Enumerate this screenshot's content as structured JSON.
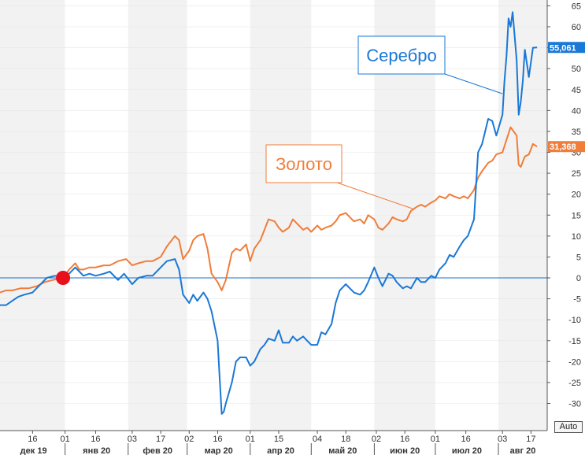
{
  "chart_data": {
    "type": "line",
    "y_ticks": [
      65,
      60,
      55,
      50,
      45,
      40,
      35,
      30,
      25,
      20,
      15,
      10,
      5,
      0,
      -5,
      -10,
      -15,
      -20,
      -25,
      -30
    ],
    "y_tick_labels": [
      "65",
      "60",
      "55",
      "50",
      "45",
      "40",
      "35",
      "30",
      "25",
      "20",
      "15",
      "10",
      "5",
      "0",
      "-5",
      "-10",
      "-15",
      "-20",
      "-25",
      "-30"
    ],
    "ylim": [
      -34,
      66
    ],
    "x_day_ticks": [
      {
        "date": "2019-12-16",
        "label": "16"
      },
      {
        "date": "2020-01-01",
        "label": "01"
      },
      {
        "date": "2020-01-16",
        "label": "16"
      },
      {
        "date": "2020-02-03",
        "label": "03"
      },
      {
        "date": "2020-02-17",
        "label": "17"
      },
      {
        "date": "2020-03-02",
        "label": "02"
      },
      {
        "date": "2020-03-16",
        "label": "16"
      },
      {
        "date": "2020-04-01",
        "label": "01"
      },
      {
        "date": "2020-04-15",
        "label": "15"
      },
      {
        "date": "2020-05-04",
        "label": "04"
      },
      {
        "date": "2020-05-18",
        "label": "18"
      },
      {
        "date": "2020-06-02",
        "label": "02"
      },
      {
        "date": "2020-06-16",
        "label": "16"
      },
      {
        "date": "2020-07-01",
        "label": "01"
      },
      {
        "date": "2020-07-16",
        "label": "16"
      },
      {
        "date": "2020-08-03",
        "label": "03"
      },
      {
        "date": "2020-08-17",
        "label": "17"
      }
    ],
    "x_month_ticks": [
      {
        "date": "2019-12-01",
        "label": "дек 19"
      },
      {
        "date": "2020-01-01",
        "label": "янв 20"
      },
      {
        "date": "2020-02-01",
        "label": "фев 20"
      },
      {
        "date": "2020-03-01",
        "label": "мар 20"
      },
      {
        "date": "2020-04-01",
        "label": "апр 20"
      },
      {
        "date": "2020-05-01",
        "label": "май 20"
      },
      {
        "date": "2020-06-01",
        "label": "июн 20"
      },
      {
        "date": "2020-07-01",
        "label": "июл 20"
      },
      {
        "date": "2020-08-01",
        "label": "авг 20"
      }
    ],
    "xlim": [
      "2019-11-30",
      "2020-08-25"
    ],
    "reference_line": {
      "y": 0,
      "color": "#1a6fcf"
    },
    "base_marker": {
      "date": "2019-12-31",
      "y": 0,
      "color": "#e8101a"
    },
    "grid": "alternating vertical month bands",
    "series": [
      {
        "name": "Серебро",
        "color": "#1a78d6",
        "last_value_label": "55,061",
        "points": [
          [
            "2019-11-30",
            -6.5
          ],
          [
            "2019-12-03",
            -6.5
          ],
          [
            "2019-12-06",
            -5.5
          ],
          [
            "2019-12-09",
            -4.5
          ],
          [
            "2019-12-12",
            -4.0
          ],
          [
            "2019-12-16",
            -3.5
          ],
          [
            "2019-12-19",
            -2.0
          ],
          [
            "2019-12-23",
            0.0
          ],
          [
            "2019-12-27",
            0.5
          ],
          [
            "2019-12-31",
            0.0
          ],
          [
            "2020-01-03",
            1.0
          ],
          [
            "2020-01-06",
            2.5
          ],
          [
            "2020-01-08",
            1.5
          ],
          [
            "2020-01-10",
            0.5
          ],
          [
            "2020-01-13",
            1.0
          ],
          [
            "2020-01-16",
            0.5
          ],
          [
            "2020-01-20",
            1.0
          ],
          [
            "2020-01-23",
            1.5
          ],
          [
            "2020-01-27",
            -0.5
          ],
          [
            "2020-01-30",
            1.0
          ],
          [
            "2020-02-03",
            -1.5
          ],
          [
            "2020-02-06",
            0.0
          ],
          [
            "2020-02-10",
            0.5
          ],
          [
            "2020-02-13",
            0.5
          ],
          [
            "2020-02-17",
            2.5
          ],
          [
            "2020-02-20",
            4.0
          ],
          [
            "2020-02-24",
            4.5
          ],
          [
            "2020-02-26",
            2.0
          ],
          [
            "2020-02-28",
            -4.0
          ],
          [
            "2020-03-02",
            -6.0
          ],
          [
            "2020-03-04",
            -4.0
          ],
          [
            "2020-03-06",
            -5.5
          ],
          [
            "2020-03-09",
            -3.5
          ],
          [
            "2020-03-11",
            -5.0
          ],
          [
            "2020-03-13",
            -8.0
          ],
          [
            "2020-03-16",
            -15.0
          ],
          [
            "2020-03-17",
            -24.0
          ],
          [
            "2020-03-18",
            -32.5
          ],
          [
            "2020-03-19",
            -32.0
          ],
          [
            "2020-03-20",
            -30.0
          ],
          [
            "2020-03-23",
            -25.0
          ],
          [
            "2020-03-25",
            -20.0
          ],
          [
            "2020-03-27",
            -19.0
          ],
          [
            "2020-03-30",
            -19.0
          ],
          [
            "2020-04-01",
            -21.0
          ],
          [
            "2020-04-03",
            -20.0
          ],
          [
            "2020-04-06",
            -17.0
          ],
          [
            "2020-04-08",
            -16.0
          ],
          [
            "2020-04-10",
            -14.5
          ],
          [
            "2020-04-13",
            -15.0
          ],
          [
            "2020-04-15",
            -12.5
          ],
          [
            "2020-04-17",
            -15.5
          ],
          [
            "2020-04-20",
            -15.5
          ],
          [
            "2020-04-22",
            -14.0
          ],
          [
            "2020-04-24",
            -15.0
          ],
          [
            "2020-04-27",
            -14.0
          ],
          [
            "2020-04-29",
            -15.0
          ],
          [
            "2020-05-01",
            -16.0
          ],
          [
            "2020-05-04",
            -16.0
          ],
          [
            "2020-05-06",
            -13.0
          ],
          [
            "2020-05-08",
            -13.5
          ],
          [
            "2020-05-11",
            -11.0
          ],
          [
            "2020-05-13",
            -6.0
          ],
          [
            "2020-05-15",
            -3.0
          ],
          [
            "2020-05-18",
            -1.5
          ],
          [
            "2020-05-20",
            -2.5
          ],
          [
            "2020-05-22",
            -3.5
          ],
          [
            "2020-05-25",
            -4.0
          ],
          [
            "2020-05-27",
            -3.0
          ],
          [
            "2020-05-29",
            -1.0
          ],
          [
            "2020-06-01",
            2.5
          ],
          [
            "2020-06-03",
            0.0
          ],
          [
            "2020-06-05",
            -2.0
          ],
          [
            "2020-06-08",
            1.0
          ],
          [
            "2020-06-10",
            0.5
          ],
          [
            "2020-06-12",
            -1.0
          ],
          [
            "2020-06-15",
            -2.5
          ],
          [
            "2020-06-17",
            -2.0
          ],
          [
            "2020-06-19",
            -2.5
          ],
          [
            "2020-06-22",
            0.0
          ],
          [
            "2020-06-24",
            -1.0
          ],
          [
            "2020-06-26",
            -1.0
          ],
          [
            "2020-06-29",
            0.5
          ],
          [
            "2020-07-01",
            0.0
          ],
          [
            "2020-07-03",
            2.0
          ],
          [
            "2020-07-06",
            3.5
          ],
          [
            "2020-07-08",
            5.5
          ],
          [
            "2020-07-10",
            5.0
          ],
          [
            "2020-07-13",
            7.5
          ],
          [
            "2020-07-15",
            9.0
          ],
          [
            "2020-07-17",
            10.0
          ],
          [
            "2020-07-20",
            14.0
          ],
          [
            "2020-07-21",
            22.0
          ],
          [
            "2020-07-22",
            30.0
          ],
          [
            "2020-07-24",
            32.0
          ],
          [
            "2020-07-27",
            38.0
          ],
          [
            "2020-07-29",
            37.5
          ],
          [
            "2020-07-31",
            34.0
          ],
          [
            "2020-08-03",
            39.0
          ],
          [
            "2020-08-04",
            47.0
          ],
          [
            "2020-08-05",
            53.0
          ],
          [
            "2020-08-06",
            62.0
          ],
          [
            "2020-08-07",
            60.0
          ],
          [
            "2020-08-08",
            63.5
          ],
          [
            "2020-08-10",
            52.0
          ],
          [
            "2020-08-11",
            39.0
          ],
          [
            "2020-08-12",
            42.0
          ],
          [
            "2020-08-13",
            47.0
          ],
          [
            "2020-08-14",
            54.5
          ],
          [
            "2020-08-16",
            48.0
          ],
          [
            "2020-08-18",
            55.0
          ],
          [
            "2020-08-20",
            55.061
          ]
        ]
      },
      {
        "name": "Золото",
        "color": "#f07d3a",
        "last_value_label": "31,368",
        "points": [
          [
            "2019-11-30",
            -3.5
          ],
          [
            "2019-12-03",
            -3.0
          ],
          [
            "2019-12-06",
            -3.0
          ],
          [
            "2019-12-10",
            -2.5
          ],
          [
            "2019-12-14",
            -2.5
          ],
          [
            "2019-12-18",
            -2.0
          ],
          [
            "2019-12-22",
            -1.0
          ],
          [
            "2019-12-26",
            -0.5
          ],
          [
            "2019-12-31",
            0.0
          ],
          [
            "2020-01-03",
            2.0
          ],
          [
            "2020-01-06",
            3.5
          ],
          [
            "2020-01-08",
            2.0
          ],
          [
            "2020-01-10",
            2.0
          ],
          [
            "2020-01-13",
            2.5
          ],
          [
            "2020-01-16",
            2.5
          ],
          [
            "2020-01-20",
            3.0
          ],
          [
            "2020-01-23",
            3.0
          ],
          [
            "2020-01-27",
            4.0
          ],
          [
            "2020-01-31",
            4.5
          ],
          [
            "2020-02-03",
            3.0
          ],
          [
            "2020-02-06",
            3.5
          ],
          [
            "2020-02-10",
            4.0
          ],
          [
            "2020-02-13",
            4.0
          ],
          [
            "2020-02-17",
            5.0
          ],
          [
            "2020-02-20",
            7.5
          ],
          [
            "2020-02-24",
            10.0
          ],
          [
            "2020-02-26",
            9.0
          ],
          [
            "2020-02-28",
            4.5
          ],
          [
            "2020-03-02",
            6.5
          ],
          [
            "2020-03-04",
            9.0
          ],
          [
            "2020-03-06",
            10.0
          ],
          [
            "2020-03-09",
            10.5
          ],
          [
            "2020-03-11",
            7.0
          ],
          [
            "2020-03-13",
            1.0
          ],
          [
            "2020-03-16",
            -1.0
          ],
          [
            "2020-03-18",
            -3.0
          ],
          [
            "2020-03-20",
            -0.5
          ],
          [
            "2020-03-23",
            6.0
          ],
          [
            "2020-03-25",
            7.0
          ],
          [
            "2020-03-27",
            6.5
          ],
          [
            "2020-03-30",
            8.0
          ],
          [
            "2020-04-01",
            4.0
          ],
          [
            "2020-04-03",
            7.0
          ],
          [
            "2020-04-06",
            9.0
          ],
          [
            "2020-04-08",
            11.5
          ],
          [
            "2020-04-10",
            14.0
          ],
          [
            "2020-04-13",
            13.5
          ],
          [
            "2020-04-15",
            12.0
          ],
          [
            "2020-04-17",
            11.0
          ],
          [
            "2020-04-20",
            12.0
          ],
          [
            "2020-04-22",
            14.0
          ],
          [
            "2020-04-24",
            13.0
          ],
          [
            "2020-04-27",
            11.5
          ],
          [
            "2020-04-29",
            12.0
          ],
          [
            "2020-05-01",
            11.0
          ],
          [
            "2020-05-04",
            12.5
          ],
          [
            "2020-05-06",
            11.5
          ],
          [
            "2020-05-08",
            12.0
          ],
          [
            "2020-05-11",
            12.5
          ],
          [
            "2020-05-13",
            13.5
          ],
          [
            "2020-05-15",
            15.0
          ],
          [
            "2020-05-18",
            15.5
          ],
          [
            "2020-05-20",
            14.5
          ],
          [
            "2020-05-22",
            13.5
          ],
          [
            "2020-05-25",
            14.0
          ],
          [
            "2020-05-27",
            13.0
          ],
          [
            "2020-05-29",
            15.0
          ],
          [
            "2020-06-01",
            14.0
          ],
          [
            "2020-06-03",
            12.0
          ],
          [
            "2020-06-05",
            11.5
          ],
          [
            "2020-06-08",
            13.0
          ],
          [
            "2020-06-10",
            14.5
          ],
          [
            "2020-06-12",
            14.0
          ],
          [
            "2020-06-15",
            13.5
          ],
          [
            "2020-06-17",
            14.0
          ],
          [
            "2020-06-19",
            16.0
          ],
          [
            "2020-06-22",
            17.0
          ],
          [
            "2020-06-24",
            17.5
          ],
          [
            "2020-06-26",
            17.0
          ],
          [
            "2020-06-29",
            18.0
          ],
          [
            "2020-07-01",
            18.5
          ],
          [
            "2020-07-03",
            19.5
          ],
          [
            "2020-07-06",
            19.0
          ],
          [
            "2020-07-08",
            20.0
          ],
          [
            "2020-07-10",
            19.5
          ],
          [
            "2020-07-13",
            19.0
          ],
          [
            "2020-07-15",
            19.5
          ],
          [
            "2020-07-17",
            19.0
          ],
          [
            "2020-07-20",
            21.0
          ],
          [
            "2020-07-22",
            24.0
          ],
          [
            "2020-07-24",
            25.5
          ],
          [
            "2020-07-27",
            27.5
          ],
          [
            "2020-07-29",
            28.0
          ],
          [
            "2020-07-31",
            29.5
          ],
          [
            "2020-08-03",
            30.0
          ],
          [
            "2020-08-05",
            33.0
          ],
          [
            "2020-08-07",
            36.0
          ],
          [
            "2020-08-10",
            34.0
          ],
          [
            "2020-08-11",
            27.0
          ],
          [
            "2020-08-12",
            26.5
          ],
          [
            "2020-08-14",
            29.0
          ],
          [
            "2020-08-16",
            29.5
          ],
          [
            "2020-08-18",
            32.0
          ],
          [
            "2020-08-20",
            31.368
          ]
        ]
      }
    ],
    "annotations": [
      {
        "text": "Серебро",
        "series": "Серебро",
        "color": "#1a78d6",
        "target_date": "2020-08-03",
        "target_y": 44.0
      },
      {
        "text": "Золото",
        "series": "Золото",
        "color": "#f07d3a",
        "target_date": "2020-06-20",
        "target_y": 16.5
      }
    ]
  },
  "controls": {
    "auto_label": "Auto"
  }
}
